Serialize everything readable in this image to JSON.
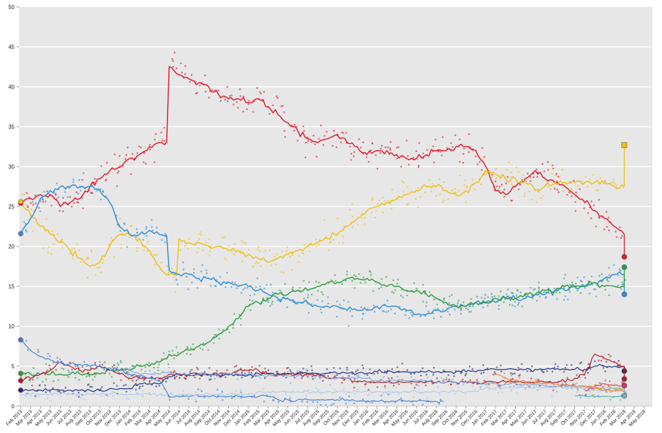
{
  "chart_data": {
    "type": "scatter",
    "subtype": "poll-tracker with trend lines, start markers (Feb 2013 election) and final markers (Mar 2018 election)",
    "title": "",
    "xlabel": "",
    "ylabel": "",
    "ylim": [
      0,
      50
    ],
    "y_ticks": [
      0,
      5,
      10,
      15,
      20,
      25,
      30,
      35,
      40,
      45,
      50
    ],
    "grid": "horizontal white gridlines on light-gray plot background",
    "plot_bg_color": "#e7e7e7",
    "grid_color": "#f7f7f7",
    "axis_tick_color": "#999999",
    "axis_label_color": "#1a1a1a",
    "election_month_index": 61,
    "x_labels": [
      "Feb 2013",
      "Mar 2013",
      "Apr 2013",
      "May 2013",
      "Jun 2013",
      "Jul 2013",
      "Aug 2013",
      "Sep 2013",
      "Oct 2013",
      "Nov 2013",
      "Dec 2013",
      "Jan 2014",
      "Feb 2014",
      "Mar 2014",
      "Apr 2014",
      "May 2014",
      "Jun 2014",
      "Jul 2014",
      "Aug 2014",
      "Sep 2014",
      "Oct 2014",
      "Nov 2014",
      "Dec 2014",
      "Jan 2015",
      "Feb 2015",
      "Mar 2015",
      "Apr 2015",
      "May 2015",
      "Jun 2015",
      "Jul 2015",
      "Aug 2015",
      "Sep 2015",
      "Oct 2015",
      "Nov 2015",
      "Dec 2015",
      "Jan 2016",
      "Feb 2016",
      "Mar 2016",
      "Apr 2016",
      "May 2016",
      "Jun 2016",
      "Jul 2016",
      "Aug 2016",
      "Sep 2016",
      "Oct 2016",
      "Nov 2016",
      "Dec 2016",
      "Jan 2017",
      "Feb 2017",
      "Mar 2017",
      "Apr 2017",
      "May 2017",
      "Jun 2017",
      "Jul 2017",
      "Aug 2017",
      "Sep 2017",
      "Oct 2017",
      "Nov 2017",
      "Dec 2017",
      "Jan 2018",
      "Feb 2018",
      "Mar 2018",
      "Apr 2018",
      "May 2018"
    ],
    "series": [
      {
        "name": "red",
        "color": "#e4192c",
        "line_width": 1.5,
        "jitter": 2.4,
        "wiggle": 0.45,
        "scatter_per_month": 5,
        "start_marker": 25.4,
        "final_marker": {
          "value": 18.7,
          "shape": "circle"
        },
        "values": [
          25.5,
          26,
          26.5,
          26.5,
          25,
          25.5,
          26,
          27.5,
          28.5,
          29.5,
          30,
          31,
          31.5,
          32.5,
          33,
          42.5,
          41.5,
          41,
          40.5,
          40,
          39,
          38.5,
          38.5,
          38,
          38.5,
          37.5,
          36.5,
          35.5,
          34.5,
          33.5,
          33,
          33.5,
          34,
          33,
          32.5,
          31.5,
          32,
          32,
          31.5,
          31,
          31,
          31.5,
          32,
          32,
          32.5,
          32.5,
          32,
          30,
          27,
          26.5,
          27.5,
          28.5,
          29.5,
          28.5,
          28,
          27.5,
          26.5,
          25.5,
          24.5,
          23.5,
          22.5,
          21.5
        ]
      },
      {
        "name": "yellow",
        "color": "#f0bf17",
        "line_width": 1.5,
        "jitter": 2.4,
        "wiggle": 0.5,
        "scatter_per_month": 5,
        "start_marker": 25.6,
        "final_marker": {
          "value": 32.7,
          "shape": "square"
        },
        "values": [
          25.5,
          24,
          22.5,
          21.5,
          20.5,
          19.5,
          18.5,
          17.5,
          18,
          20,
          21.5,
          21.5,
          21,
          19.5,
          17.5,
          16.5,
          21,
          20.5,
          20.5,
          20,
          20,
          19.5,
          19.5,
          19,
          18.5,
          18,
          18.5,
          19,
          19.5,
          20,
          20.5,
          21,
          21.5,
          22.5,
          23.5,
          24.5,
          25,
          25.5,
          26,
          26.5,
          27,
          27.5,
          27.5,
          27,
          26.5,
          27,
          28,
          29.5,
          29,
          28.5,
          28.5,
          28,
          27,
          27.5,
          28,
          28,
          28,
          28,
          28,
          28,
          27.5,
          27.5
        ]
      },
      {
        "name": "blue",
        "color": "#2e8fd8",
        "line_width": 1.5,
        "jitter": 2.0,
        "wiggle": 0.45,
        "scatter_per_month": 4,
        "start_marker": 21.6,
        "final_marker": {
          "value": 14.0,
          "shape": "circle"
        },
        "values": [
          21.6,
          23.5,
          26,
          27,
          27.5,
          27.5,
          27.5,
          27.5,
          27,
          25.5,
          22.5,
          21.5,
          21.5,
          22,
          21.5,
          17,
          16.5,
          16.5,
          16,
          16,
          15.5,
          15.5,
          15,
          15,
          14.5,
          14,
          13.5,
          13.5,
          13,
          13,
          12.5,
          12.5,
          12.5,
          12,
          12,
          12,
          12.5,
          12.5,
          12.5,
          12,
          11.5,
          11.5,
          12,
          12,
          12.5,
          12.5,
          13,
          13,
          13,
          13.5,
          13.5,
          13.5,
          14,
          14,
          14.5,
          14.5,
          15,
          15,
          15.5,
          16,
          16.5,
          16.5
        ]
      },
      {
        "name": "green",
        "color": "#2f9e44",
        "line_width": 1.5,
        "jitter": 1.6,
        "wiggle": 0.4,
        "scatter_per_month": 4,
        "start_marker": 4.1,
        "final_marker": {
          "value": 17.4,
          "shape": "circle"
        },
        "values": [
          4.1,
          4,
          4,
          4,
          4,
          4,
          4,
          4,
          4,
          4.5,
          4.5,
          4.5,
          5,
          5,
          5.5,
          6.5,
          6.5,
          7,
          7.5,
          8,
          9,
          10,
          11,
          12.5,
          13,
          13.5,
          14,
          14,
          14.5,
          14.5,
          15,
          15.5,
          15.5,
          16,
          16,
          16,
          15.5,
          15,
          15,
          14.5,
          14.5,
          14,
          13.5,
          13,
          12.5,
          12.5,
          13,
          13,
          13.5,
          13.5,
          13.5,
          14,
          14,
          14.5,
          14.5,
          15,
          15,
          15,
          15.5,
          15,
          15,
          15
        ]
      },
      {
        "name": "navy",
        "color": "#1f2b7e",
        "line_width": 1.2,
        "jitter": 1.0,
        "wiggle": 0.3,
        "scatter_per_month": 3,
        "start_marker": 2.0,
        "final_marker": {
          "value": 4.4,
          "shape": "circle"
        },
        "values": [
          2,
          2,
          2,
          2,
          2,
          2,
          2,
          2,
          2,
          2.2,
          2.2,
          2.2,
          2.8,
          2.8,
          2.8,
          3.7,
          3.9,
          3.9,
          3.9,
          3.9,
          3.9,
          3.9,
          3.9,
          3.9,
          4.1,
          4.1,
          4.1,
          4.1,
          4.1,
          4.1,
          4.1,
          4.1,
          4.1,
          4.1,
          4.1,
          4.1,
          4.3,
          4.3,
          4.3,
          4.3,
          4.3,
          4.3,
          4.3,
          4.3,
          4.3,
          4.3,
          4.3,
          4.6,
          4.6,
          4.6,
          4.6,
          4.6,
          4.6,
          4.6,
          4.6,
          4.6,
          4.6,
          4.6,
          5,
          5,
          5,
          5
        ]
      },
      {
        "name": "darkred",
        "color": "#b01d28",
        "line_width": 1.2,
        "jitter": 1.0,
        "wiggle": 0.3,
        "scatter_per_month": 3,
        "start_marker": 3.2,
        "final_marker": {
          "value": 3.4,
          "shape": "circle"
        },
        "values": [
          3.2,
          3.5,
          4,
          4.5,
          5.5,
          5,
          4.5,
          4.5,
          5,
          4.5,
          4,
          3.5,
          3.5,
          3.5,
          3.5,
          4,
          4,
          4,
          4,
          4,
          4,
          4,
          4.5,
          4.5,
          4.5,
          4,
          4,
          4,
          4,
          4,
          4,
          3.5,
          3.5,
          3.5,
          3,
          3,
          3,
          3,
          3,
          3,
          3,
          3,
          3,
          3,
          3,
          3,
          3,
          3,
          3,
          3,
          3,
          3,
          3,
          3,
          3,
          3,
          3.5,
          4,
          6.5,
          6,
          5.5,
          5
        ]
      },
      {
        "name": "cornflower",
        "color": "#7aa6dd",
        "line_width": 1.1,
        "jitter": 1.0,
        "wiggle": 0.25,
        "scatter_per_month": 2,
        "start_marker": null,
        "final_marker": {
          "value": 1.3,
          "shape": "circle"
        },
        "values": [
          null,
          null,
          null,
          null,
          null,
          null,
          null,
          null,
          null,
          4.5,
          4.5,
          4.5,
          4,
          4,
          4,
          4.3,
          4,
          4,
          4,
          4,
          4,
          4,
          4,
          4,
          3.8,
          3.8,
          3.8,
          3.8,
          3.8,
          3.8,
          3.8,
          3.5,
          3.5,
          3.5,
          3.5,
          3.5,
          3.2,
          3.2,
          3.2,
          3.2,
          3.2,
          3.2,
          3,
          3,
          3,
          3,
          3,
          2.8,
          2.8,
          2.8,
          2.8,
          2.8,
          2.8,
          2.5,
          2.5,
          2.5,
          2.5,
          2.5,
          2.2,
          2.2,
          2.2,
          2.2
        ]
      },
      {
        "name": "mediumblue-sc",
        "color": "#3a7bd5",
        "line_width": 1.1,
        "jitter": 1.0,
        "wiggle": 0.25,
        "scatter_per_month": 2,
        "start_marker": 8.3,
        "final_marker": null,
        "values": [
          8.3,
          7,
          6.2,
          5.8,
          5.5,
          5.3,
          5.2,
          5,
          5,
          4.8,
          4.5,
          4,
          3.8,
          3.5,
          3.2,
          1.2,
          1.2,
          1.2,
          1.2,
          1.2,
          1.2,
          1.2,
          1.2,
          1.2,
          1.2,
          1.2,
          0.8,
          0.8,
          0.8,
          0.8,
          0.8,
          0.8,
          0.8,
          0.8,
          0.6,
          0.6,
          0.6,
          0.6,
          0.6,
          0.6,
          0.6,
          0.6,
          0.6,
          null,
          null,
          null,
          null,
          null,
          null,
          null,
          null,
          null,
          null,
          null,
          null,
          null,
          null,
          null,
          null,
          null,
          null,
          null
        ]
      },
      {
        "name": "paleblue",
        "color": "#a9c6e8",
        "line_width": 1.0,
        "jitter": 1.0,
        "wiggle": 0.25,
        "scatter_per_month": 2,
        "start_marker": null,
        "final_marker": null,
        "values": [
          1.5,
          1.5,
          1.5,
          1.5,
          1.5,
          1.5,
          1.5,
          1.5,
          1.5,
          1.5,
          1.5,
          1.5,
          1.5,
          1.5,
          1.5,
          1.5,
          1.5,
          1.5,
          1.5,
          1.5,
          1.5,
          1.5,
          1.5,
          1.5,
          1.8,
          1.8,
          1.8,
          1.8,
          1.8,
          1.8,
          1.8,
          1.8,
          1.8,
          1.8,
          1.8,
          1.8,
          1.8,
          1.8,
          1.8,
          1.8,
          1.8,
          1.8,
          1.8,
          1.8,
          1.8,
          1.8,
          1.8,
          2.3,
          2.3,
          2.3,
          2.3,
          2.3,
          2.3,
          2.3,
          2.3,
          2.3,
          2.3,
          2.3,
          2,
          2,
          2,
          2
        ]
      },
      {
        "name": "orange",
        "color": "#ef7d33",
        "line_width": 1.1,
        "jitter": 1.0,
        "wiggle": 0.3,
        "scatter_per_month": 3,
        "start_marker": null,
        "final_marker": null,
        "values": [
          null,
          null,
          null,
          null,
          null,
          null,
          null,
          null,
          null,
          null,
          null,
          null,
          null,
          null,
          null,
          null,
          null,
          null,
          null,
          null,
          null,
          null,
          null,
          null,
          null,
          null,
          null,
          null,
          null,
          null,
          null,
          null,
          null,
          null,
          null,
          null,
          null,
          null,
          null,
          null,
          null,
          null,
          null,
          null,
          null,
          null,
          null,
          null,
          4,
          3.5,
          3.2,
          3,
          3,
          2.8,
          2.8,
          2.6,
          2.5,
          2.5,
          2.2,
          2,
          1.9,
          1.8
        ]
      },
      {
        "name": "magenta",
        "color": "#d6336c",
        "line_width": 1.1,
        "jitter": 0.8,
        "wiggle": 0.25,
        "scatter_per_month": 3,
        "start_marker": null,
        "final_marker": {
          "value": 2.6,
          "shape": "circle"
        },
        "values": [
          null,
          null,
          null,
          null,
          null,
          null,
          null,
          null,
          null,
          null,
          null,
          null,
          null,
          null,
          null,
          null,
          null,
          null,
          null,
          null,
          null,
          null,
          null,
          null,
          null,
          null,
          null,
          null,
          null,
          null,
          null,
          null,
          null,
          null,
          null,
          null,
          null,
          null,
          null,
          null,
          null,
          null,
          null,
          null,
          null,
          null,
          null,
          null,
          null,
          null,
          null,
          null,
          null,
          null,
          null,
          null,
          null,
          2,
          2.5,
          2.8,
          2.6,
          2.6
        ]
      },
      {
        "name": "teal",
        "color": "#2aa9a0",
        "line_width": 1.0,
        "jitter": 0.7,
        "wiggle": 0.2,
        "scatter_per_month": 2,
        "start_marker": null,
        "final_marker": null,
        "values": [
          null,
          null,
          null,
          null,
          null,
          null,
          null,
          null,
          null,
          null,
          null,
          null,
          null,
          null,
          null,
          null,
          null,
          null,
          null,
          null,
          null,
          null,
          null,
          null,
          null,
          null,
          null,
          null,
          null,
          null,
          null,
          null,
          null,
          null,
          null,
          null,
          null,
          null,
          null,
          null,
          null,
          null,
          null,
          null,
          null,
          null,
          null,
          null,
          null,
          null,
          null,
          null,
          null,
          null,
          null,
          null,
          1.3,
          1.3,
          1.2,
          1.2,
          1.2,
          1.2
        ]
      },
      {
        "name": "yellow-small",
        "color": "#d4c71f",
        "line_width": 1.0,
        "jitter": 0.7,
        "wiggle": 0.2,
        "scatter_per_month": 2,
        "start_marker": null,
        "final_marker": null,
        "values": [
          null,
          null,
          null,
          null,
          null,
          null,
          null,
          null,
          null,
          null,
          null,
          null,
          null,
          null,
          null,
          null,
          null,
          null,
          null,
          null,
          null,
          null,
          null,
          null,
          null,
          null,
          null,
          null,
          null,
          null,
          null,
          null,
          null,
          null,
          null,
          null,
          null,
          null,
          null,
          null,
          null,
          null,
          null,
          null,
          null,
          null,
          null,
          null,
          null,
          null,
          null,
          null,
          null,
          null,
          null,
          null,
          null,
          2.3,
          2.4,
          2.3,
          2.3,
          2.3
        ]
      }
    ]
  }
}
